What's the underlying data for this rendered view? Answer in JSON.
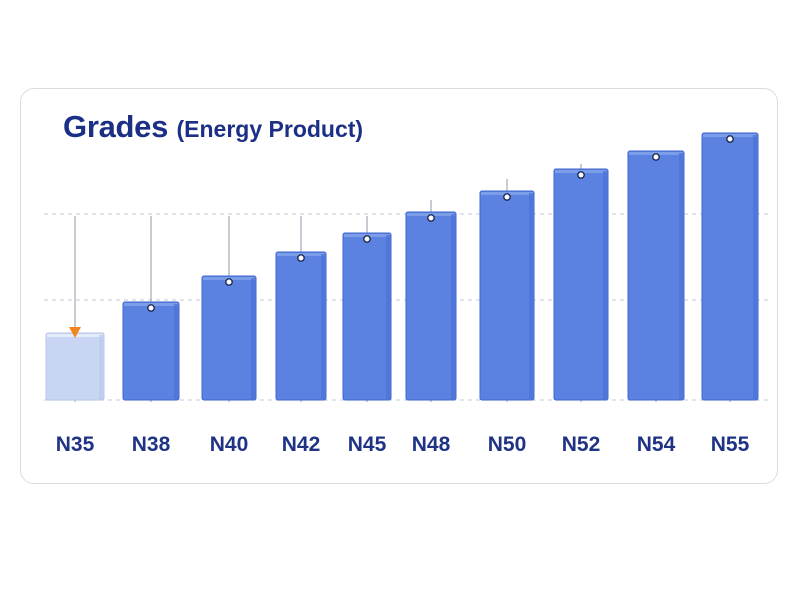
{
  "chart_data": {
    "type": "bar",
    "title": "Grades",
    "subtitle": "(Energy Product)",
    "categories": [
      "N35",
      "N38",
      "N40",
      "N42",
      "N45",
      "N48",
      "N50",
      "N52",
      "N54",
      "N55"
    ],
    "values": [
      33.5,
      49,
      62,
      74,
      83.5,
      94,
      104.5,
      115.5,
      124.5,
      133.5
    ],
    "highlight_index": 0,
    "ylim": [
      0,
      150
    ],
    "grid": true,
    "colors": {
      "bar": "#5b82e0",
      "bar_edge": "#3f66cf",
      "bar_highlight": "#c9d6f3",
      "marker_highlight": "#f2861e",
      "grid": "#cfd3dc",
      "label": "#1f3385"
    }
  }
}
